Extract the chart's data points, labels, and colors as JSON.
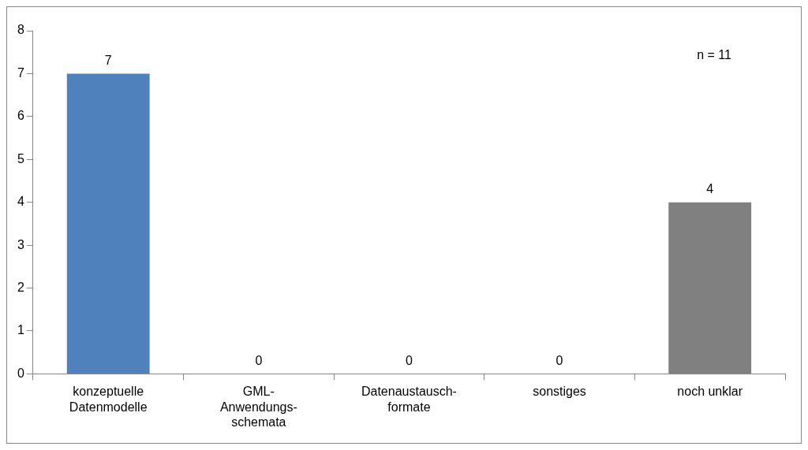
{
  "chart_data": {
    "type": "bar",
    "categories": [
      "konzeptuelle\nDatenmodelle",
      "GML-\nAnwendungs-\nschemata",
      "Datenaustausch-\nformate",
      "sonstiges",
      "noch unklar"
    ],
    "values": [
      7,
      0,
      0,
      0,
      4
    ],
    "colors": [
      "#4f81bd",
      "#4f81bd",
      "#4f81bd",
      "#4f81bd",
      "#808080"
    ],
    "ylim": [
      0,
      8
    ],
    "yticks": [
      0,
      1,
      2,
      3,
      4,
      5,
      6,
      7,
      8
    ],
    "grid": false,
    "legend": false,
    "data_labels": true,
    "annotations": [
      "n = 11"
    ]
  }
}
